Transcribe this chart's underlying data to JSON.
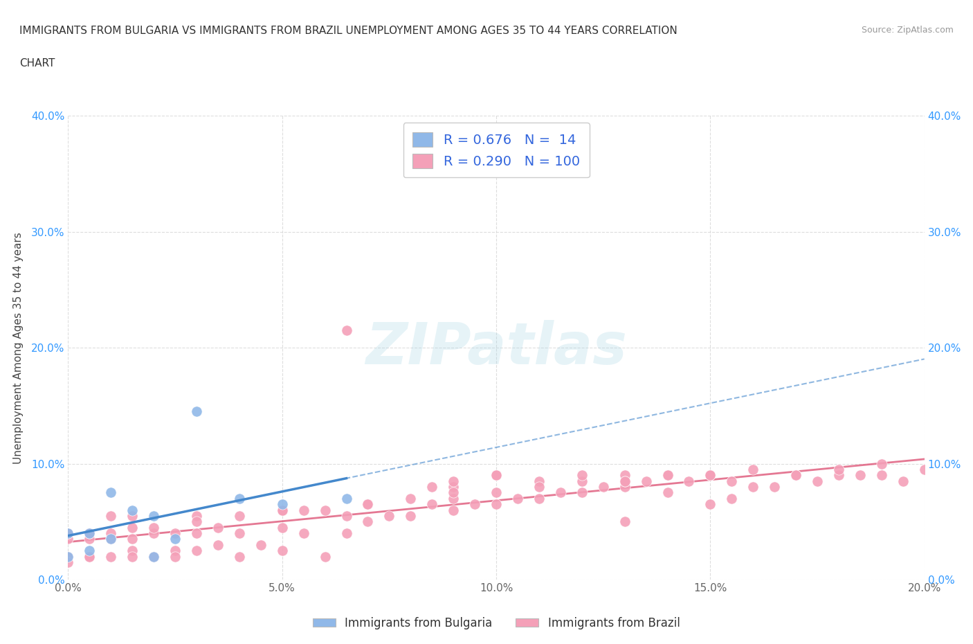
{
  "title_line1": "IMMIGRANTS FROM BULGARIA VS IMMIGRANTS FROM BRAZIL UNEMPLOYMENT AMONG AGES 35 TO 44 YEARS CORRELATION",
  "title_line2": "CHART",
  "source": "Source: ZipAtlas.com",
  "ylabel": "Unemployment Among Ages 35 to 44 years",
  "xlim": [
    0.0,
    0.2
  ],
  "ylim": [
    0.0,
    0.4
  ],
  "xticks": [
    0.0,
    0.05,
    0.1,
    0.15,
    0.2
  ],
  "yticks": [
    0.0,
    0.1,
    0.2,
    0.3,
    0.4
  ],
  "xtick_labels": [
    "0.0%",
    "5.0%",
    "10.0%",
    "15.0%",
    "20.0%"
  ],
  "ytick_labels": [
    "0.0%",
    "10.0%",
    "20.0%",
    "30.0%",
    "40.0%"
  ],
  "bulgaria_color": "#90b8e8",
  "bulgaria_line_color": "#4488cc",
  "brazil_color": "#f4a0b8",
  "brazil_line_color": "#e06080",
  "bulgaria_R": 0.676,
  "bulgaria_N": 14,
  "brazil_R": 0.29,
  "brazil_N": 100,
  "legend_text_color": "#3366dd",
  "watermark_text": "ZIPatlas",
  "legend_entries": [
    "Immigrants from Bulgaria",
    "Immigrants from Brazil"
  ],
  "bulgaria_scatter_x": [
    0.0,
    0.0,
    0.005,
    0.005,
    0.01,
    0.01,
    0.015,
    0.02,
    0.02,
    0.025,
    0.03,
    0.04,
    0.05,
    0.065
  ],
  "bulgaria_scatter_y": [
    0.02,
    0.04,
    0.025,
    0.04,
    0.035,
    0.075,
    0.06,
    0.055,
    0.02,
    0.035,
    0.145,
    0.07,
    0.065,
    0.07
  ],
  "brazil_scatter_x": [
    0.0,
    0.0,
    0.0,
    0.0,
    0.005,
    0.005,
    0.005,
    0.005,
    0.01,
    0.01,
    0.01,
    0.01,
    0.015,
    0.015,
    0.015,
    0.015,
    0.015,
    0.02,
    0.02,
    0.02,
    0.025,
    0.025,
    0.025,
    0.03,
    0.03,
    0.03,
    0.035,
    0.035,
    0.04,
    0.04,
    0.04,
    0.045,
    0.05,
    0.05,
    0.05,
    0.055,
    0.055,
    0.06,
    0.06,
    0.065,
    0.065,
    0.07,
    0.07,
    0.075,
    0.08,
    0.08,
    0.085,
    0.085,
    0.09,
    0.09,
    0.09,
    0.095,
    0.1,
    0.1,
    0.1,
    0.105,
    0.11,
    0.11,
    0.115,
    0.12,
    0.12,
    0.125,
    0.13,
    0.13,
    0.13,
    0.135,
    0.14,
    0.14,
    0.145,
    0.15,
    0.15,
    0.155,
    0.155,
    0.16,
    0.165,
    0.17,
    0.175,
    0.18,
    0.185,
    0.19,
    0.195,
    0.2,
    0.065,
    0.07,
    0.09,
    0.1,
    0.12,
    0.13,
    0.14,
    0.15,
    0.16,
    0.17,
    0.18,
    0.19,
    0.03,
    0.05,
    0.07,
    0.09,
    0.11,
    0.13
  ],
  "brazil_scatter_y": [
    0.02,
    0.035,
    0.04,
    0.015,
    0.02,
    0.035,
    0.04,
    0.02,
    0.02,
    0.035,
    0.04,
    0.055,
    0.025,
    0.035,
    0.045,
    0.055,
    0.02,
    0.02,
    0.04,
    0.045,
    0.025,
    0.04,
    0.02,
    0.025,
    0.04,
    0.055,
    0.03,
    0.045,
    0.02,
    0.04,
    0.055,
    0.03,
    0.025,
    0.045,
    0.06,
    0.04,
    0.06,
    0.02,
    0.06,
    0.055,
    0.215,
    0.05,
    0.065,
    0.055,
    0.055,
    0.07,
    0.065,
    0.08,
    0.06,
    0.07,
    0.08,
    0.065,
    0.065,
    0.075,
    0.09,
    0.07,
    0.07,
    0.085,
    0.075,
    0.075,
    0.085,
    0.08,
    0.08,
    0.09,
    0.05,
    0.085,
    0.075,
    0.09,
    0.085,
    0.065,
    0.09,
    0.07,
    0.085,
    0.08,
    0.08,
    0.09,
    0.085,
    0.09,
    0.09,
    0.09,
    0.085,
    0.095,
    0.04,
    0.065,
    0.085,
    0.09,
    0.09,
    0.085,
    0.09,
    0.09,
    0.095,
    0.09,
    0.095,
    0.1,
    0.05,
    0.06,
    0.065,
    0.075,
    0.08,
    0.085
  ],
  "grid_color": "#dddddd",
  "grid_linestyle": "--",
  "background_color": "#ffffff",
  "tick_label_color_x": "#666666",
  "tick_label_color_y": "#3399ff"
}
